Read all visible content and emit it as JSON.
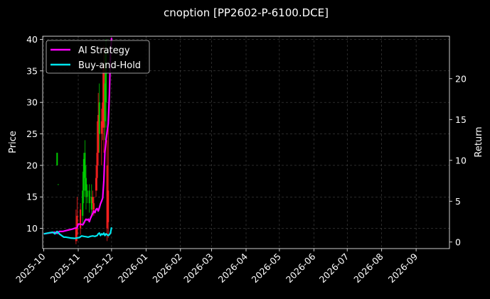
{
  "chart_data": {
    "type": "line",
    "title": "cnoption [PP2602-P-6100.DCE]",
    "xlabel": "",
    "ylabel": "Price",
    "y2label": "Return",
    "x_ticks": [
      "2025-10",
      "2025-11",
      "2025-12",
      "2026-01",
      "2026-02",
      "2026-03",
      "2026-04",
      "2026-05",
      "2026-06",
      "2026-07",
      "2026-08",
      "2026-09"
    ],
    "x_tick_days": [
      0,
      31,
      61,
      92,
      123,
      151,
      182,
      212,
      243,
      273,
      304,
      335
    ],
    "xlim_days": [
      -1,
      365
    ],
    "ylim": [
      6.8,
      40.5
    ],
    "y_ticks": [
      10,
      15,
      20,
      25,
      30,
      35,
      40
    ],
    "y2lim": [
      -0.8,
      25.2
    ],
    "y2_ticks": [
      0,
      5,
      10,
      15,
      20
    ],
    "grid": true,
    "legend_position": "upper-left",
    "colors": {
      "background": "#000000",
      "grid": "#555555",
      "up_candle": "#00cc00",
      "down_candle": "#ff2020",
      "ai_strategy": "#ff00ff",
      "buy_and_hold": "#00e5ee"
    },
    "candles": [
      {
        "d": 12,
        "o": 20,
        "c": 22,
        "l": 20,
        "h": 22
      },
      {
        "d": 13,
        "o": 17,
        "c": 17,
        "l": 17,
        "h": 17
      },
      {
        "d": 29,
        "o": 10,
        "c": 8,
        "l": 7.5,
        "h": 13
      },
      {
        "d": 30,
        "o": 12,
        "c": 9,
        "l": 8,
        "h": 15
      },
      {
        "d": 33,
        "o": 13,
        "c": 10,
        "l": 9,
        "h": 14
      },
      {
        "d": 35,
        "o": 12,
        "c": 16,
        "l": 10.5,
        "h": 19
      },
      {
        "d": 36,
        "o": 16,
        "c": 21,
        "l": 14,
        "h": 22
      },
      {
        "d": 37,
        "o": 18,
        "c": 22,
        "l": 15,
        "h": 24
      },
      {
        "d": 38,
        "o": 16,
        "c": 18,
        "l": 13,
        "h": 20
      },
      {
        "d": 39,
        "o": 15,
        "c": 16,
        "l": 14,
        "h": 17
      },
      {
        "d": 41,
        "o": 14,
        "c": 16,
        "l": 12.5,
        "h": 17
      },
      {
        "d": 43,
        "o": 13,
        "c": 15,
        "l": 12,
        "h": 17
      },
      {
        "d": 44,
        "o": 15,
        "c": 14,
        "l": 12.5,
        "h": 16
      },
      {
        "d": 45,
        "o": 14,
        "c": 13,
        "l": 12,
        "h": 15
      },
      {
        "d": 47,
        "o": 18,
        "c": 16,
        "l": 15,
        "h": 20
      },
      {
        "d": 48,
        "o": 22,
        "c": 18,
        "l": 16,
        "h": 27
      },
      {
        "d": 49,
        "o": 28,
        "c": 22,
        "l": 20,
        "h": 31.5
      },
      {
        "d": 50,
        "o": 25,
        "c": 30,
        "l": 22,
        "h": 33
      },
      {
        "d": 52,
        "o": 27,
        "c": 25,
        "l": 20,
        "h": 29
      },
      {
        "d": 53,
        "o": 30,
        "c": 26,
        "l": 24,
        "h": 36
      },
      {
        "d": 54,
        "o": 36,
        "c": 26,
        "l": 22,
        "h": 39
      },
      {
        "d": 55,
        "o": 27,
        "c": 33,
        "l": 24,
        "h": 38
      },
      {
        "d": 56,
        "o": 30,
        "c": 38,
        "l": 26,
        "h": 40
      },
      {
        "d": 57,
        "o": 20,
        "c": 10,
        "l": 8,
        "h": 24
      },
      {
        "d": 58,
        "o": 16,
        "c": 11,
        "l": 8.5,
        "h": 27
      }
    ],
    "series": [
      {
        "name": "AI Strategy",
        "x_days": [
          0,
          5,
          10,
          12,
          14,
          17,
          20,
          23,
          26,
          28,
          30,
          31,
          33,
          35,
          36,
          37,
          38,
          39,
          40,
          41,
          42,
          43,
          44,
          45,
          46,
          47,
          48,
          49,
          50,
          51,
          52,
          53,
          54,
          55,
          56,
          57,
          58,
          59,
          60,
          61
        ],
        "values": [
          1.0,
          1.1,
          1.2,
          1.05,
          1.3,
          1.3,
          1.4,
          1.5,
          1.6,
          1.7,
          1.75,
          2.2,
          2.2,
          2.1,
          2.3,
          2.6,
          2.8,
          2.7,
          2.8,
          2.5,
          2.9,
          3.2,
          3.5,
          3.8,
          3.6,
          4.0,
          4.1,
          3.8,
          4.2,
          4.7,
          5.0,
          5.4,
          7.5,
          11.0,
          12.5,
          13.5,
          14.5,
          18.0,
          23.0,
          25.0
        ]
      },
      {
        "name": "Buy-and-Hold",
        "x_days": [
          0,
          4,
          8,
          10,
          12,
          14,
          16,
          18,
          20,
          24,
          28,
          30,
          32,
          34,
          36,
          38,
          40,
          42,
          44,
          46,
          48,
          49,
          50,
          51,
          52,
          53,
          54,
          55,
          56,
          57,
          58,
          59,
          60,
          61
        ],
        "values": [
          1.0,
          1.1,
          1.2,
          1.0,
          1.3,
          1.0,
          0.8,
          0.6,
          0.6,
          0.5,
          0.45,
          0.5,
          0.55,
          0.75,
          0.7,
          0.65,
          0.6,
          0.7,
          0.75,
          0.7,
          0.8,
          1.0,
          1.1,
          0.8,
          1.0,
          0.9,
          1.1,
          0.8,
          1.0,
          0.9,
          0.8,
          0.9,
          1.1,
          1.8
        ]
      }
    ]
  }
}
